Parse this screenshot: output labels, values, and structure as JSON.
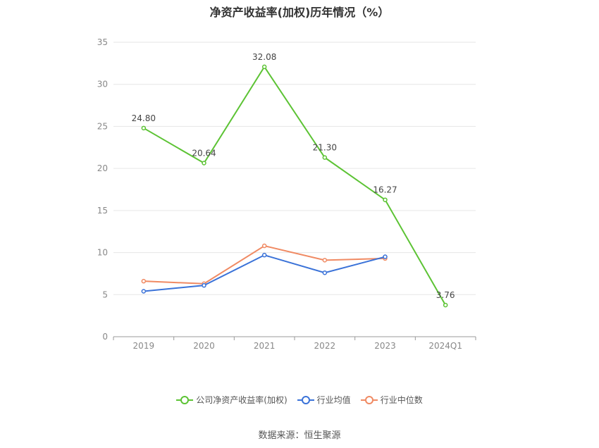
{
  "chart_data": {
    "type": "line",
    "title": "净资产收益率(加权)历年情况（%）",
    "categories": [
      "2019",
      "2020",
      "2021",
      "2022",
      "2023",
      "2024Q1"
    ],
    "ylim": [
      0,
      35
    ],
    "yticks": [
      0,
      5,
      10,
      15,
      20,
      25,
      30,
      35
    ],
    "grid": true,
    "legend_position": "bottom",
    "series": [
      {
        "name": "公司净资产收益率(加权)",
        "color": "#5cc334",
        "values": [
          24.8,
          20.64,
          32.08,
          21.3,
          16.27,
          3.76
        ],
        "labels": [
          "24.80",
          "20.64",
          "32.08",
          "21.30",
          "16.27",
          "3.76"
        ]
      },
      {
        "name": "行业均值",
        "color": "#3a72d8",
        "values": [
          5.4,
          6.1,
          9.7,
          7.6,
          9.5,
          null
        ]
      },
      {
        "name": "行业中位数",
        "color": "#f08a63",
        "values": [
          6.6,
          6.3,
          10.8,
          9.1,
          9.3,
          null
        ]
      }
    ]
  },
  "source": "数据来源：恒生聚源"
}
